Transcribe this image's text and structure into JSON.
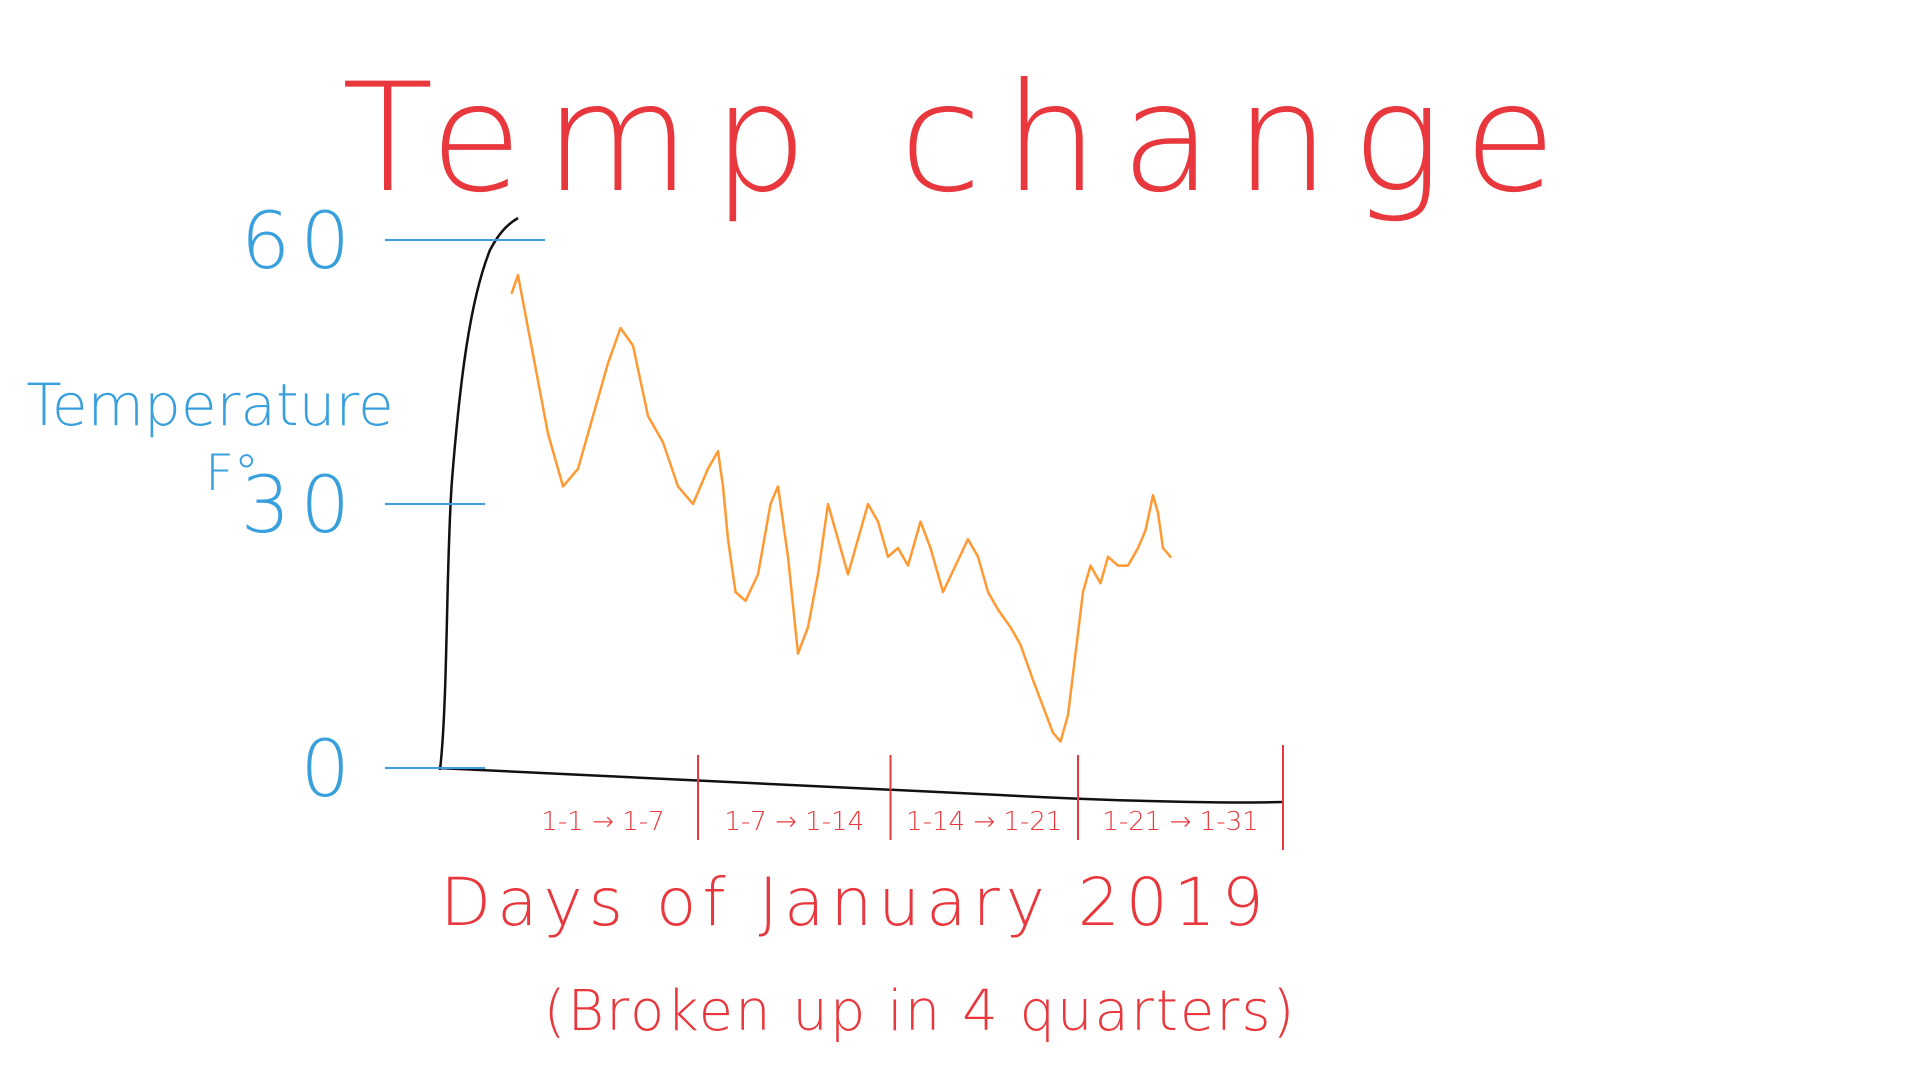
{
  "chart_data": {
    "type": "line",
    "title": "Temp change",
    "ylabel_line1": "Temperature",
    "ylabel_line2": "F°",
    "xlabel": "Days of January 2019",
    "xlabel_sub": "(Broken up in 4 quarters)",
    "ylim": [
      0,
      60
    ],
    "yticks": [
      0,
      30,
      60
    ],
    "xlim": [
      0,
      31
    ],
    "xtick_labels": [
      "1-1 → 1-7",
      "1-7 → 1-14",
      "1-14 → 1-21",
      "1-21 → 1-31"
    ],
    "quarter_dividers": [
      7.6,
      15.3,
      22.8,
      31
    ],
    "grid": false,
    "series": [
      {
        "color": "#ff9933",
        "points": [
          [
            0.15,
            54
          ],
          [
            0.4,
            56
          ],
          [
            1.0,
            47
          ],
          [
            1.6,
            38
          ],
          [
            2.2,
            32
          ],
          [
            2.8,
            34
          ],
          [
            3.4,
            40
          ],
          [
            4.0,
            46
          ],
          [
            4.5,
            50
          ],
          [
            5.0,
            48
          ],
          [
            5.6,
            40
          ],
          [
            6.2,
            37
          ],
          [
            6.8,
            32
          ],
          [
            7.4,
            30
          ],
          [
            8.0,
            34
          ],
          [
            8.4,
            36
          ],
          [
            8.6,
            32
          ],
          [
            8.8,
            26
          ],
          [
            9.1,
            20
          ],
          [
            9.5,
            19
          ],
          [
            10.0,
            22
          ],
          [
            10.5,
            30
          ],
          [
            10.8,
            32
          ],
          [
            11.2,
            24
          ],
          [
            11.6,
            13
          ],
          [
            12.0,
            16
          ],
          [
            12.4,
            22
          ],
          [
            12.8,
            30
          ],
          [
            13.1,
            27
          ],
          [
            13.6,
            22
          ],
          [
            14.0,
            26
          ],
          [
            14.4,
            30
          ],
          [
            14.8,
            28
          ],
          [
            15.2,
            24
          ],
          [
            15.6,
            25
          ],
          [
            16.0,
            23
          ],
          [
            16.5,
            28
          ],
          [
            16.9,
            25
          ],
          [
            17.4,
            20
          ],
          [
            17.9,
            23
          ],
          [
            18.4,
            26
          ],
          [
            18.8,
            24
          ],
          [
            19.2,
            20
          ],
          [
            19.6,
            18
          ],
          [
            20.1,
            16
          ],
          [
            20.5,
            14
          ],
          [
            21.0,
            10
          ],
          [
            21.4,
            7
          ],
          [
            21.8,
            4
          ],
          [
            22.1,
            3
          ],
          [
            22.4,
            6
          ],
          [
            22.7,
            13
          ],
          [
            23.0,
            20
          ],
          [
            23.3,
            23
          ],
          [
            23.7,
            21
          ],
          [
            24.0,
            24
          ],
          [
            24.4,
            23
          ],
          [
            24.8,
            23
          ],
          [
            25.2,
            25
          ],
          [
            25.5,
            27
          ],
          [
            25.8,
            31
          ],
          [
            26.0,
            29
          ],
          [
            26.2,
            25
          ],
          [
            26.5,
            24
          ]
        ]
      }
    ],
    "colors": {
      "title": "#e8383d",
      "y_axis_labels": "#3aa0dd",
      "x_axis_labels": "#e8383d",
      "axes": "#111111",
      "line": "#ff9933"
    }
  }
}
